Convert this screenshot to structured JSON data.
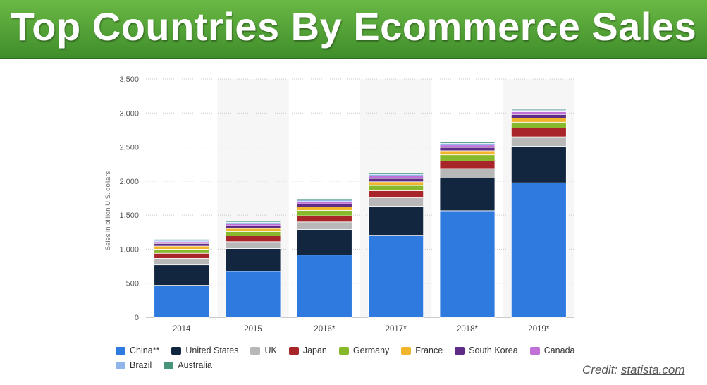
{
  "banner": {
    "title": "Top Countries By Ecommerce Sales"
  },
  "credit": {
    "prefix": "Credit:",
    "link": "statista.com"
  },
  "chart_data": {
    "type": "bar",
    "stacked": true,
    "ylabel": "Sales in billion U.S. dollars",
    "ylim": [
      0,
      3500
    ],
    "yticks": [
      "0",
      "500",
      "1,000",
      "1,500",
      "2,000",
      "2,500",
      "3,000",
      "3,500"
    ],
    "categories": [
      "2014",
      "2015",
      "2016*",
      "2017*",
      "2018*",
      "2019*"
    ],
    "grid": true,
    "alternating_column_shading": true,
    "legend_position": "bottom",
    "series": [
      {
        "name": "China**",
        "color": "#2e7ade",
        "values": [
          470,
          675,
          915,
          1205,
          1565,
          1975
        ]
      },
      {
        "name": "United States",
        "color": "#12263f",
        "values": [
          300,
          335,
          375,
          425,
          480,
          535
        ]
      },
      {
        "name": "UK",
        "color": "#b8b8b8",
        "values": [
          95,
          100,
          110,
          125,
          140,
          140
        ]
      },
      {
        "name": "Japan",
        "color": "#a8262a",
        "values": [
          75,
          85,
          90,
          105,
          110,
          130
        ]
      },
      {
        "name": "Germany",
        "color": "#88b82b",
        "values": [
          60,
          65,
          80,
          75,
          90,
          85
        ]
      },
      {
        "name": "France",
        "color": "#f0b52a",
        "values": [
          45,
          45,
          50,
          55,
          60,
          60
        ]
      },
      {
        "name": "South Korea",
        "color": "#5e2c87",
        "values": [
          40,
          40,
          45,
          50,
          50,
          55
        ]
      },
      {
        "name": "Canada",
        "color": "#c170d8",
        "values": [
          25,
          30,
          35,
          35,
          35,
          40
        ]
      },
      {
        "name": "Brazil",
        "color": "#8fb5ea",
        "values": [
          20,
          20,
          25,
          25,
          25,
          25
        ]
      },
      {
        "name": "Australia",
        "color": "#45947b",
        "values": [
          15,
          15,
          15,
          20,
          20,
          20
        ]
      }
    ]
  }
}
